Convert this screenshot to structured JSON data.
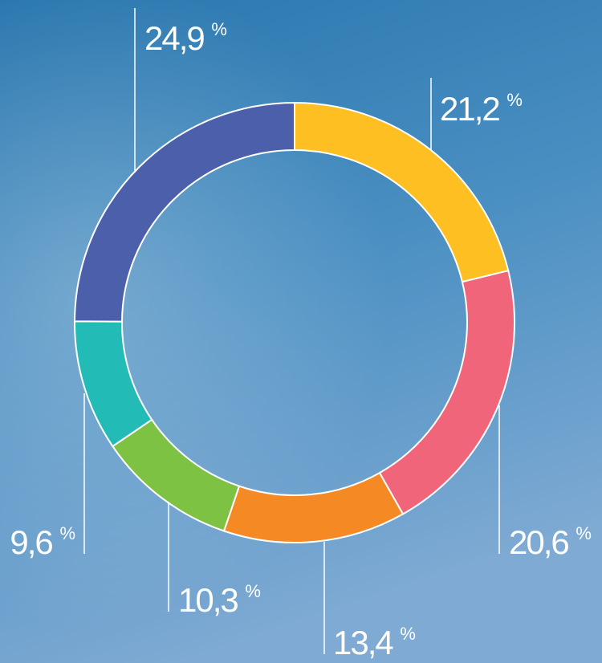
{
  "chart_data": {
    "type": "pie",
    "donut": true,
    "values": [
      21.2,
      20.6,
      13.4,
      10.3,
      9.6,
      24.9
    ],
    "value_labels": [
      "21,2 %",
      "20,6 %",
      "13,4 %",
      "10,3 %",
      "9,6 %",
      "24,9 %"
    ],
    "colors": [
      "#fdbf22",
      "#f0657a",
      "#f58a25",
      "#7dc242",
      "#22bbb6",
      "#4c5fab"
    ]
  }
}
